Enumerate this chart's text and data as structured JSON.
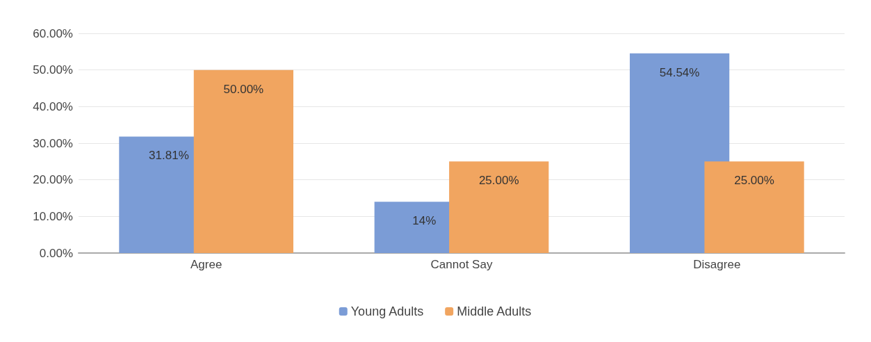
{
  "chart_data": {
    "type": "bar",
    "categories": [
      "Agree",
      "Cannot Say",
      "Disagree"
    ],
    "series": [
      {
        "name": "Young Adults",
        "color": "#7b9cd6",
        "values": [
          31.81,
          14,
          54.54
        ],
        "value_labels": [
          "31.81%",
          "14%",
          "54.54%"
        ]
      },
      {
        "name": "Middle Adults",
        "color": "#f1a560",
        "values": [
          50,
          25,
          25
        ],
        "value_labels": [
          "50.00%",
          "25.00%",
          "25.00%"
        ]
      }
    ],
    "ylim": [
      0,
      60
    ],
    "yticks": [
      {
        "value": 0,
        "label": "0.00%"
      },
      {
        "value": 10,
        "label": "10.00%"
      },
      {
        "value": 20,
        "label": "20.00%"
      },
      {
        "value": 30,
        "label": "30.00%"
      },
      {
        "value": 40,
        "label": "40.00%"
      },
      {
        "value": 50,
        "label": "50.00%"
      },
      {
        "value": 60,
        "label": "60.00%"
      }
    ],
    "grid": "y",
    "legend": "bottom"
  }
}
